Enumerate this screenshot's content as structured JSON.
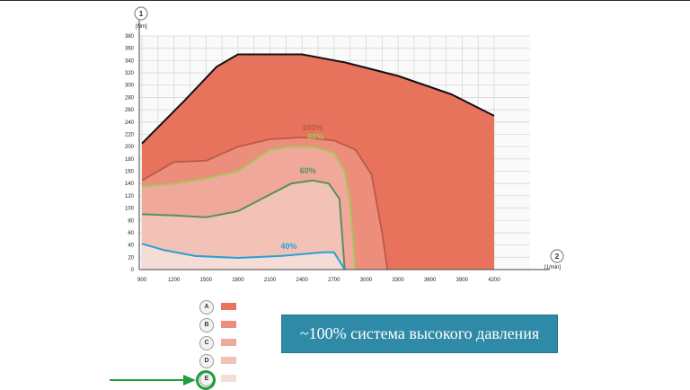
{
  "caption": "~100% система высокого давления",
  "colors": {
    "A": "#e8735c",
    "B": "#ec8e7b",
    "C": "#efa89a",
    "D": "#f3c2b6",
    "E": "#f6dcd6",
    "curve_100": "#b85a48",
    "curve_80": "#a7c45a",
    "curve_60": "#5a8f5a",
    "curve_40": "#2a9fd6",
    "envelope": "#111111",
    "highlight": "#1f9e3a"
  },
  "legend": [
    {
      "id": "A",
      "label": "A"
    },
    {
      "id": "B",
      "label": "B"
    },
    {
      "id": "C",
      "label": "C"
    },
    {
      "id": "D",
      "label": "D"
    },
    {
      "id": "E",
      "label": "E"
    }
  ],
  "icons": {
    "arrow": "green-arrow-right-icon",
    "ring": "highlight-circle-icon"
  },
  "chart_data": {
    "type": "area",
    "y_axis_badge": "1",
    "y_unit": "[Nm]",
    "x_axis_badge": "2",
    "x_unit": "[1/min]",
    "xlim": [
      900,
      4200
    ],
    "ylim": [
      0,
      380
    ],
    "x_ticks": [
      900,
      1200,
      1500,
      1800,
      2100,
      2400,
      2700,
      3000,
      3300,
      3600,
      3900,
      4200
    ],
    "y_ticks": [
      0,
      20,
      40,
      60,
      80,
      100,
      120,
      140,
      160,
      180,
      200,
      220,
      240,
      260,
      280,
      300,
      320,
      340,
      360,
      380
    ],
    "grid": true,
    "series": [
      {
        "name": "",
        "x": [
          900,
          1300,
          1600,
          1800,
          2400,
          2800,
          3300,
          3800,
          4200
        ],
        "y": [
          205,
          275,
          330,
          350,
          350,
          337,
          315,
          285,
          250
        ]
      },
      {
        "name": "100%",
        "x": [
          900,
          1200,
          1500,
          1800,
          2100,
          2400,
          2700,
          2900,
          3050,
          3150,
          3200
        ],
        "y": [
          145,
          175,
          177,
          200,
          212,
          215,
          210,
          195,
          155,
          60,
          0
        ]
      },
      {
        "name": "80%",
        "x": [
          900,
          1200,
          1500,
          1800,
          2100,
          2300,
          2500,
          2700,
          2800,
          2850,
          2900
        ],
        "y": [
          135,
          140,
          148,
          160,
          195,
          200,
          200,
          190,
          160,
          110,
          0
        ]
      },
      {
        "name": "60%",
        "x": [
          900,
          1200,
          1500,
          1800,
          2100,
          2300,
          2500,
          2650,
          2750,
          2800
        ],
        "y": [
          90,
          88,
          85,
          95,
          122,
          140,
          145,
          140,
          115,
          0
        ]
      },
      {
        "name": "40%",
        "x": [
          900,
          1100,
          1400,
          1800,
          2200,
          2600,
          2700,
          2800
        ],
        "y": [
          42,
          32,
          22,
          19,
          22,
          28,
          28,
          0
        ]
      }
    ]
  }
}
